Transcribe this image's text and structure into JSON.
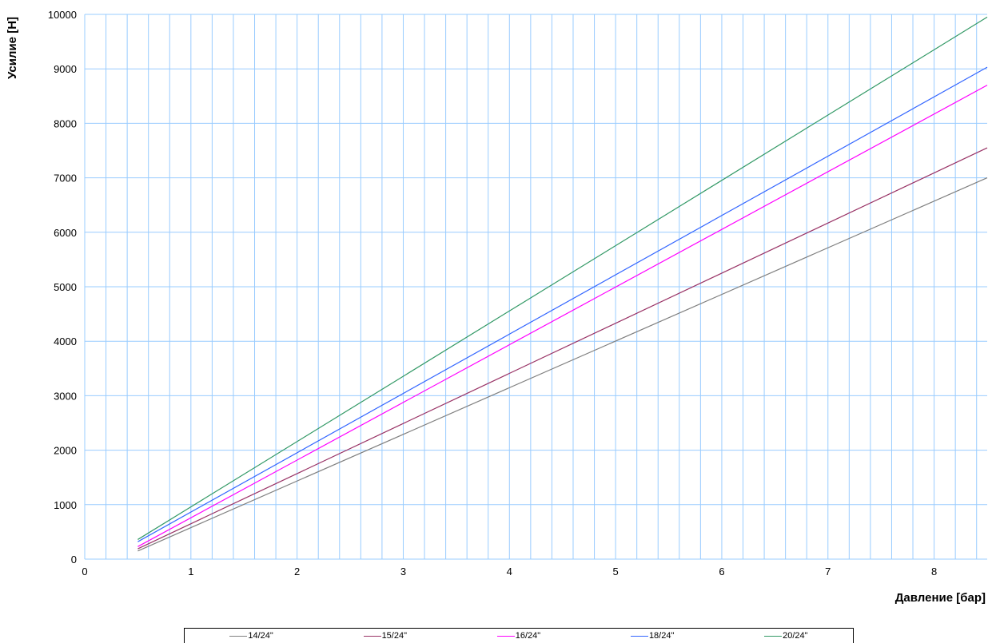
{
  "chart_data": {
    "type": "line",
    "title": "",
    "xlabel": "Давление [бар]",
    "ylabel": "Усилие [Н]",
    "xlim": [
      0,
      8.5
    ],
    "ylim": [
      0,
      10000
    ],
    "x_ticks": [
      "0",
      "1",
      "2",
      "3",
      "4",
      "5",
      "6",
      "7",
      "8"
    ],
    "y_ticks": [
      "0",
      "1000",
      "2000",
      "3000",
      "4000",
      "5000",
      "6000",
      "7000",
      "8000",
      "9000",
      "10000"
    ],
    "x_grid_step": 0.2,
    "y_grid_step": 1000,
    "grid": true,
    "grid_color": "#99ccff",
    "legend_position": "bottom",
    "series": [
      {
        "name": "14/24\"",
        "color": "#808080",
        "x": [
          0.5,
          8.5
        ],
        "y": [
          150,
          7000
        ]
      },
      {
        "name": "15/24\"",
        "color": "#993366",
        "x": [
          0.5,
          8.5
        ],
        "y": [
          190,
          7550
        ]
      },
      {
        "name": "16/24\"",
        "color": "#ff00ff",
        "x": [
          0.5,
          8.5
        ],
        "y": [
          230,
          8700
        ]
      },
      {
        "name": "18/24\"",
        "color": "#3366ff",
        "x": [
          0.5,
          8.5
        ],
        "y": [
          320,
          9030
        ]
      },
      {
        "name": "20/24\"",
        "color": "#339966",
        "x": [
          0.5,
          8.5
        ],
        "y": [
          360,
          9950
        ]
      }
    ]
  }
}
